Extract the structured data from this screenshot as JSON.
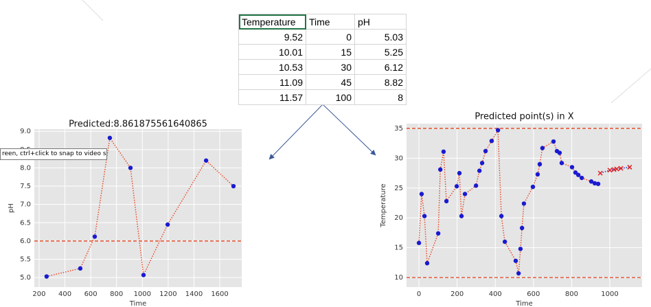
{
  "table": {
    "header": [
      "Temperature",
      "Time",
      "pH"
    ],
    "rows": [
      [
        9.52,
        0,
        5.03
      ],
      [
        10.01,
        15,
        5.25
      ],
      [
        10.53,
        30,
        6.12
      ],
      [
        11.09,
        45,
        8.82
      ],
      [
        11.57,
        100,
        8
      ]
    ]
  },
  "tooltip": "reen, ctrl+click to snap to video size",
  "chart_data": [
    {
      "type": "line",
      "title": "Predicted:8.861875561640865",
      "xlabel": "Time",
      "ylabel": "pH",
      "series": [
        {
          "color": "#1a1ad0",
          "line_color": "#e8401c",
          "marker": "circle",
          "x": [
            258,
            519,
            631,
            748,
            908,
            1009,
            1196,
            1494,
            1706
          ],
          "values": [
            5.03,
            5.25,
            6.12,
            8.82,
            8.0,
            5.07,
            6.45,
            8.2,
            7.5
          ]
        }
      ],
      "hlines": [
        6.0
      ],
      "hline_color": "#e8401c",
      "xlim": [
        163,
        1770
      ],
      "ylim": [
        4.74,
        9.06
      ],
      "xticks": [
        200,
        400,
        600,
        800,
        1000,
        1200,
        1400,
        1600
      ],
      "yticks": [
        {
          "value": 5,
          "label": "5.0"
        },
        5.5,
        {
          "value": 6,
          "label": "6.0"
        },
        6.5,
        {
          "value": 7,
          "label": "7.0"
        },
        7.5,
        {
          "value": 8,
          "label": "8.0"
        },
        8.5,
        {
          "value": 9,
          "label": "9.0"
        }
      ],
      "grid": true
    },
    {
      "type": "line",
      "title": "Predicted point(s) in X",
      "xlabel": "Time",
      "ylabel": "Temperature",
      "series": [
        {
          "color": "#1a1ad0",
          "line_color": "#e8401c",
          "marker": "circle",
          "x": [
            0,
            14,
            29,
            43,
            101,
            112,
            129,
            144,
            198,
            212,
            223,
            241,
            299,
            317,
            331,
            349,
            381,
            414,
            432,
            450,
            507,
            522,
            532,
            540,
            550,
            597,
            622,
            633,
            647,
            705,
            723,
            737,
            748,
            802,
            820,
            835,
            853,
            903,
            921,
            939
          ],
          "values": [
            15.8,
            24,
            20.3,
            12.4,
            17.4,
            28.1,
            31.1,
            22.8,
            25.3,
            27.5,
            20.3,
            24,
            25.4,
            27.9,
            29.2,
            31.2,
            32.9,
            34.7,
            20.3,
            16,
            12.8,
            10.7,
            14.8,
            18.3,
            22.4,
            25.2,
            27.3,
            29,
            31.7,
            32.8,
            31.2,
            30.9,
            29.2,
            28.5,
            27.6,
            27.2,
            26.7,
            26.1,
            25.8,
            25.7
          ]
        },
        {
          "color": "#e02020",
          "line_color": "#1a1ad0",
          "marker": "x",
          "x": [
            950,
            1000,
            1022,
            1036,
            1058,
            1104
          ],
          "values": [
            27.5,
            28,
            28.1,
            28.2,
            28.3,
            28.5
          ]
        }
      ],
      "hlines": [
        35,
        10
      ],
      "hline_color": "#e8401c",
      "xlim": [
        -65,
        1169
      ],
      "ylim": [
        8.4,
        35.8
      ],
      "xticks": [
        0,
        200,
        400,
        600,
        800,
        1000
      ],
      "yticks": [
        10,
        15,
        20,
        25,
        30,
        35
      ],
      "grid": true
    }
  ]
}
